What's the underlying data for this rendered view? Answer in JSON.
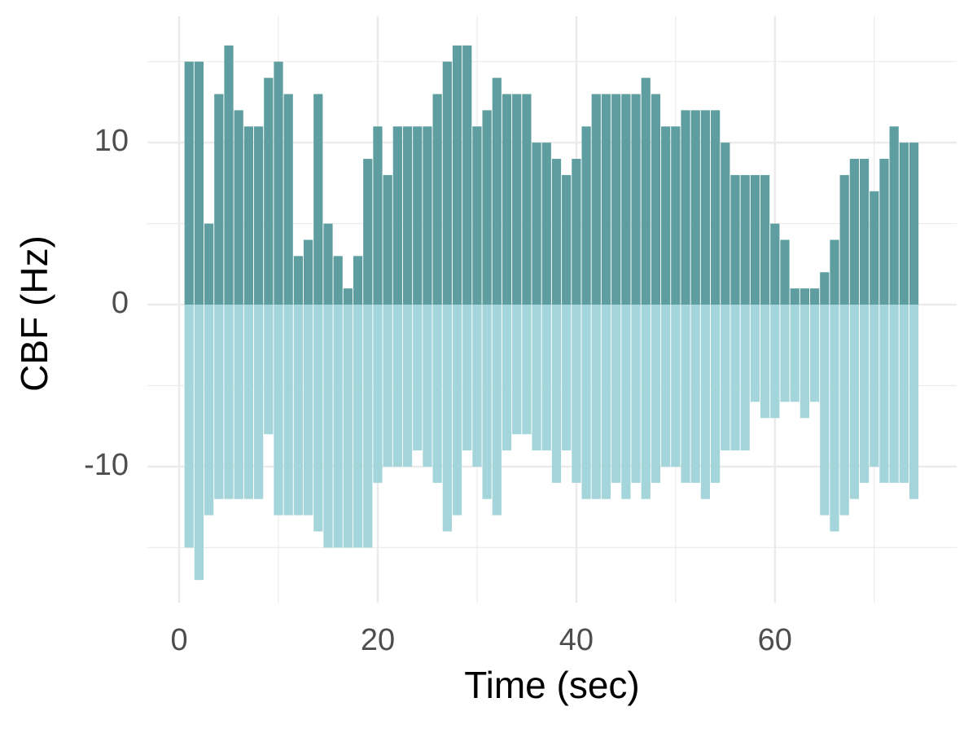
{
  "chart_data": {
    "type": "bar",
    "x_label": "Time (sec)",
    "y_label": "CBF (Hz)",
    "x": [
      1,
      2,
      3,
      4,
      5,
      6,
      7,
      8,
      9,
      10,
      11,
      12,
      13,
      14,
      15,
      16,
      17,
      18,
      19,
      20,
      21,
      22,
      23,
      24,
      25,
      26,
      27,
      28,
      29,
      30,
      31,
      32,
      33,
      34,
      35,
      36,
      37,
      38,
      39,
      40,
      41,
      42,
      43,
      44,
      45,
      46,
      47,
      48,
      49,
      50,
      51,
      52,
      53,
      54,
      55,
      56,
      57,
      58,
      59,
      60,
      61,
      62,
      63,
      64,
      65,
      66,
      67,
      68,
      69,
      70,
      71,
      72,
      73,
      74
    ],
    "series": [
      {
        "color": "#5f9ea0",
        "values": [
          15,
          15,
          5,
          13,
          16,
          12,
          11,
          11,
          14,
          15,
          13,
          3,
          4,
          13,
          5,
          3,
          1,
          3,
          9,
          11,
          8,
          11,
          11,
          11,
          11,
          13,
          15,
          16,
          16,
          11,
          12,
          14,
          13,
          13,
          13,
          10,
          10,
          9,
          8,
          9,
          11,
          13,
          13,
          13,
          13,
          13,
          14,
          13,
          11,
          11,
          12,
          12,
          12,
          12,
          10,
          8,
          8,
          8,
          8,
          5,
          4,
          1,
          1,
          1,
          2,
          4,
          8,
          9,
          9,
          7,
          9,
          11,
          10,
          10
        ]
      },
      {
        "color": "#a4d5da",
        "values": [
          -15,
          -17,
          -13,
          -12,
          -12,
          -12,
          -12,
          -12,
          -8,
          -13,
          -13,
          -13,
          -13,
          -14,
          -15,
          -15,
          -15,
          -15,
          -15,
          -11,
          -10,
          -10,
          -10,
          -9,
          -10,
          -11,
          -14,
          -13,
          -9,
          -10,
          -12,
          -13,
          -9,
          -8,
          -8,
          -9,
          -9,
          -11,
          -9,
          -11,
          -12,
          -12,
          -12,
          -11,
          -12,
          -11,
          -12,
          -11,
          -10,
          -10,
          -11,
          -11,
          -12,
          -11,
          -9,
          -9,
          -9,
          -6,
          -7,
          -7,
          -6,
          -6,
          -7,
          -6,
          -13,
          -14,
          -13,
          -12,
          -11,
          -10,
          -11,
          -11,
          -11,
          -12
        ]
      }
    ],
    "xlim": [
      -3.2,
      78.3
    ],
    "ylim": [
      -18.4,
      17.8
    ],
    "xticks": [
      0,
      20,
      40,
      60
    ],
    "yticks": [
      -10,
      0,
      10
    ],
    "x_minor_ticks": [
      10,
      30,
      50,
      70
    ],
    "y_minor_ticks": [
      -15,
      -5,
      5,
      15
    ],
    "grid": true
  }
}
